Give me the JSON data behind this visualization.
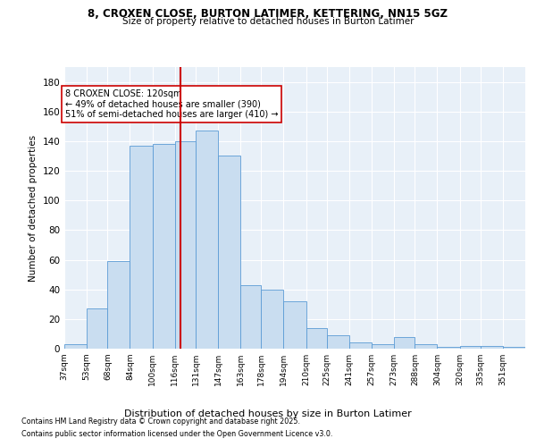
{
  "title_line1": "8, CROXEN CLOSE, BURTON LATIMER, KETTERING, NN15 5GZ",
  "title_line2": "Size of property relative to detached houses in Burton Latimer",
  "xlabel": "Distribution of detached houses by size in Burton Latimer",
  "ylabel": "Number of detached properties",
  "categories": [
    "37sqm",
    "53sqm",
    "68sqm",
    "84sqm",
    "100sqm",
    "116sqm",
    "131sqm",
    "147sqm",
    "163sqm",
    "178sqm",
    "194sqm",
    "210sqm",
    "225sqm",
    "241sqm",
    "257sqm",
    "273sqm",
    "288sqm",
    "304sqm",
    "320sqm",
    "335sqm",
    "351sqm"
  ],
  "bar_values": [
    3,
    27,
    59,
    137,
    138,
    140,
    147,
    130,
    43,
    40,
    32,
    14,
    9,
    4,
    3,
    8,
    3,
    1,
    2,
    2,
    1
  ],
  "bar_color": "#c9ddf0",
  "bar_edge_color": "#5b9bd5",
  "vline_x": 120,
  "vline_color": "#cc0000",
  "annotation_text": "8 CROXEN CLOSE: 120sqm\n← 49% of detached houses are smaller (390)\n51% of semi-detached houses are larger (410) →",
  "annotation_box_color": "#ffffff",
  "annotation_box_edge": "#cc0000",
  "ylim": [
    0,
    190
  ],
  "yticks": [
    0,
    20,
    40,
    60,
    80,
    100,
    120,
    140,
    160,
    180
  ],
  "footer_line1": "Contains HM Land Registry data © Crown copyright and database right 2025.",
  "footer_line2": "Contains public sector information licensed under the Open Government Licence v3.0.",
  "bg_color": "#e8f0f8",
  "fig_bg_color": "#ffffff",
  "grid_color": "#ffffff",
  "bin_edges": [
    37,
    53,
    68,
    84,
    100,
    116,
    131,
    147,
    163,
    178,
    194,
    210,
    225,
    241,
    257,
    273,
    288,
    304,
    320,
    335,
    351,
    367
  ]
}
